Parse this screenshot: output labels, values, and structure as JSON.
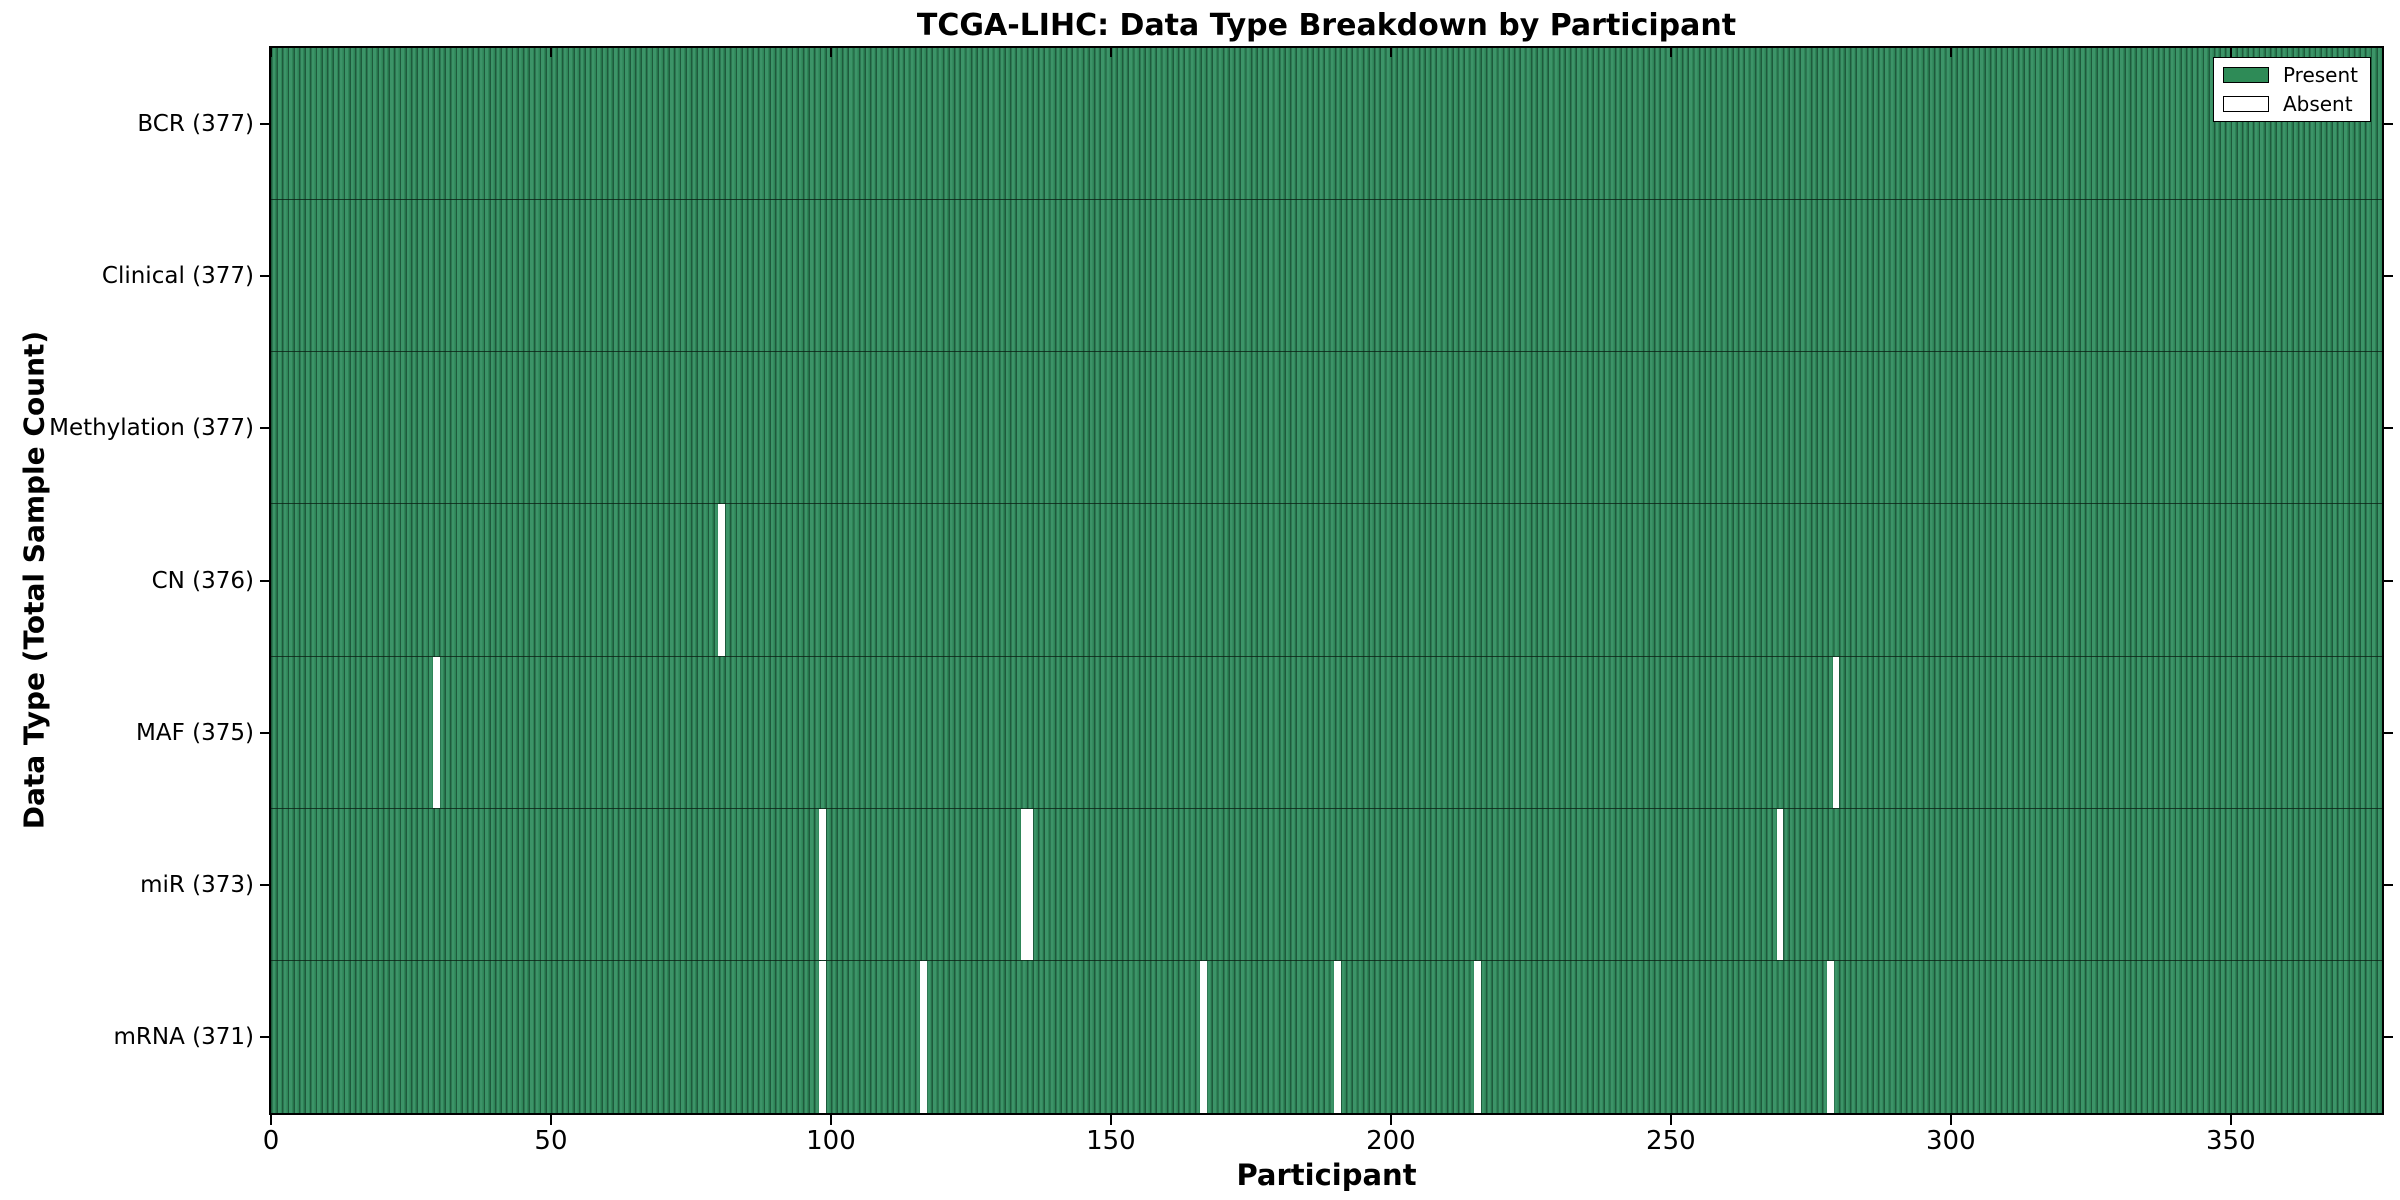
{
  "title": "TCGA-LIHC: Data Type Breakdown by Participant",
  "xlabel": "Participant",
  "ylabel": "Data Type (Total Sample Count)",
  "colors": {
    "present_fill": "#2e8b57",
    "present_stripe_dark": "#1e5a3c",
    "present_stripe_light": "#3c9468",
    "absent_fill": "#ffffff",
    "axis": "#000000"
  },
  "legend": {
    "entries": [
      {
        "label": "Present",
        "swatch": "green"
      },
      {
        "label": "Absent",
        "swatch": "white"
      }
    ]
  },
  "chart_data": {
    "type": "heatmap",
    "title": "TCGA-LIHC: Data Type Breakdown by Participant",
    "xlabel": "Participant",
    "ylabel": "Data Type (Total Sample Count)",
    "x_range": [
      0,
      377
    ],
    "n_participants": 377,
    "x_ticks": [
      0,
      50,
      100,
      150,
      200,
      250,
      300,
      350
    ],
    "legend_position": "upper right",
    "grid": false,
    "rows": [
      {
        "label": "BCR (377)",
        "data_type": "BCR",
        "present_count": 377,
        "absent_participants": []
      },
      {
        "label": "Clinical (377)",
        "data_type": "Clinical",
        "present_count": 377,
        "absent_participants": []
      },
      {
        "label": "Methylation (377)",
        "data_type": "Methylation",
        "present_count": 377,
        "absent_participants": []
      },
      {
        "label": "CN (376)",
        "data_type": "CN",
        "present_count": 376,
        "absent_participants": [
          80
        ]
      },
      {
        "label": "MAF (375)",
        "data_type": "MAF",
        "present_count": 375,
        "absent_participants": [
          29,
          279
        ]
      },
      {
        "label": "miR (373)",
        "data_type": "miR",
        "present_count": 373,
        "absent_participants": [
          98,
          134,
          135,
          269
        ]
      },
      {
        "label": "mRNA (371)",
        "data_type": "mRNA",
        "present_count": 371,
        "absent_participants": [
          98,
          116,
          166,
          190,
          215,
          278
        ]
      }
    ]
  }
}
